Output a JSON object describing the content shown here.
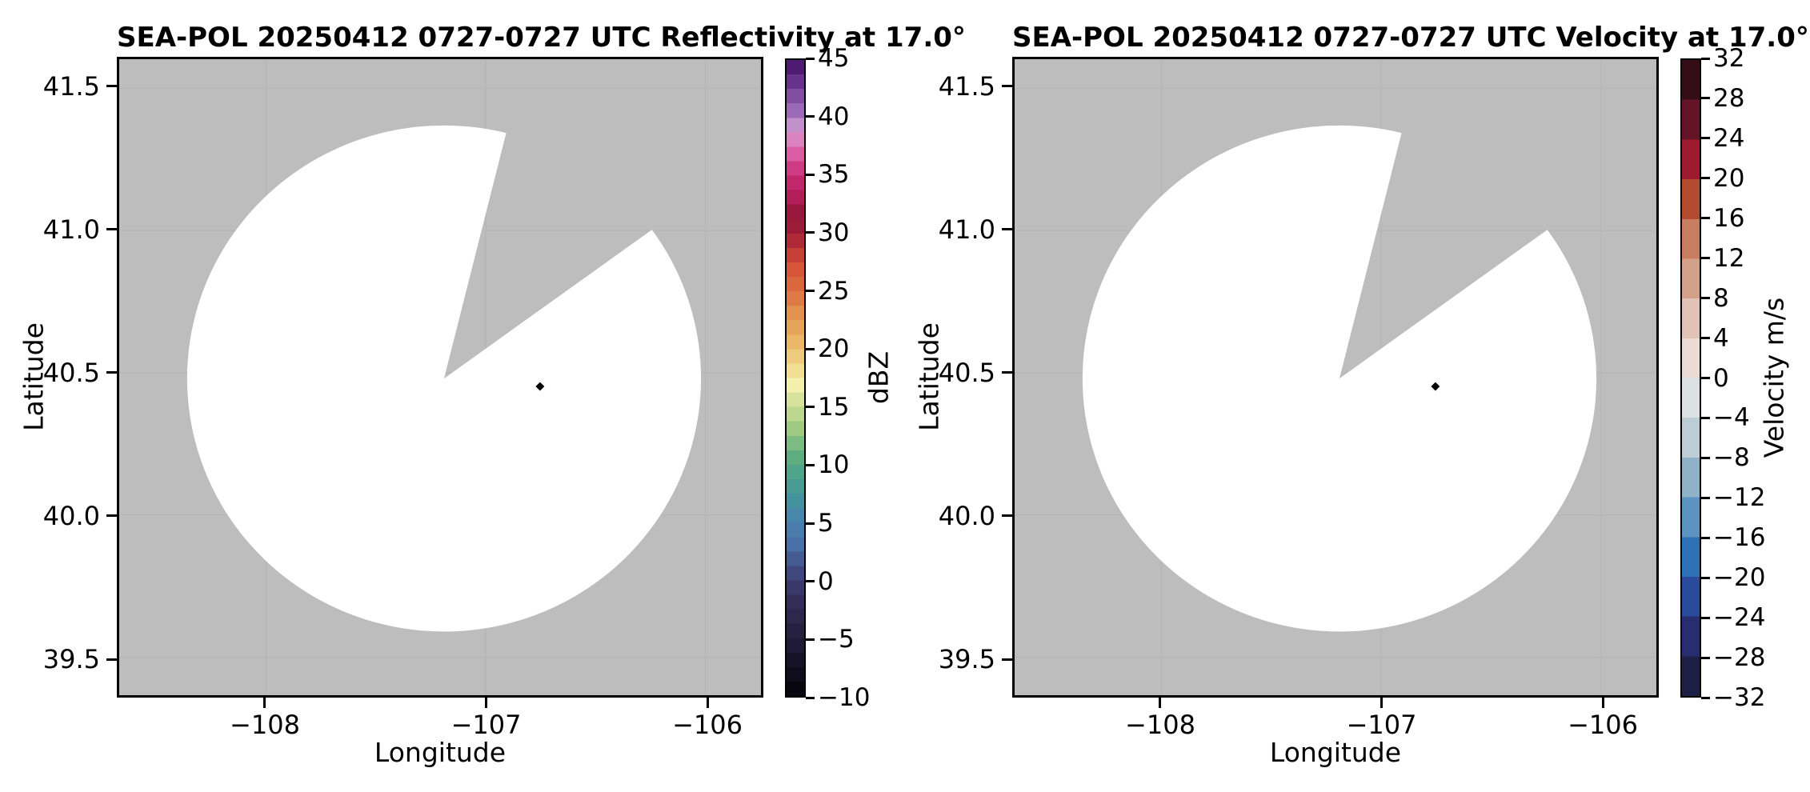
{
  "figure": {
    "background_color": "#ffffff",
    "panel_nodata_color": "#bdbdbd",
    "grid_color": "#b0b0b0",
    "scan_coverage_fill": "#ffffff",
    "marker_color": "#000000",
    "axes_edge_color": "#000000",
    "text_color": "#000000"
  },
  "chart_data": [
    {
      "type": "radar_ppi_map",
      "field": "reflectivity",
      "title": "SEA-POL 20250412 0727-0727 UTC Reflectivity at 17.0°",
      "xlabel": "Longitude",
      "ylabel": "Latitude",
      "xlim": [
        -108.669,
        -105.747
      ],
      "ylim": [
        39.366,
        41.603
      ],
      "xticks": [
        -108,
        -107,
        -106
      ],
      "xtick_labels": [
        "−108",
        "−107",
        "−106"
      ],
      "yticks": [
        41.5,
        41.0,
        40.5,
        40.0,
        39.5
      ],
      "ytick_labels": [
        "41.5",
        "41.0",
        "40.5",
        "40.0",
        "39.5"
      ],
      "grid": true,
      "data_note": "Sweep shows no echoes above mask threshold: scan coverage area is blank (white); surrounding no-data region is gray; one black diamond marker plotted.",
      "scan_coverage": {
        "center_lon": -107.19,
        "center_lat": 40.48,
        "radius_lon_deg": 1.17,
        "radius_lat_deg": 0.89,
        "missing_sector_start_az_deg": 14,
        "missing_sector_end_az_deg": 54
      },
      "marker": {
        "lon": -106.753,
        "lat": 40.452,
        "shape": "diamond"
      },
      "colorbar": {
        "label": "dBZ",
        "min": -10,
        "max": 45,
        "ticks": [
          45,
          40,
          35,
          30,
          25,
          20,
          15,
          10,
          5,
          0,
          -5,
          -10
        ],
        "tick_labels": [
          "45",
          "40",
          "35",
          "30",
          "25",
          "20",
          "15",
          "10",
          "5",
          "0",
          "−5",
          "−10"
        ],
        "style": "quantized_gradient",
        "quant_step": 1.25,
        "stops": [
          [
            -10,
            "#050409"
          ],
          [
            -7,
            "#151126"
          ],
          [
            -5,
            "#241e3c"
          ],
          [
            -2,
            "#322c55"
          ],
          [
            0,
            "#3d3c72"
          ],
          [
            3,
            "#4a6fa7"
          ],
          [
            5,
            "#4a82b0"
          ],
          [
            7,
            "#43939c"
          ],
          [
            9,
            "#4aa18b"
          ],
          [
            11,
            "#63b07f"
          ],
          [
            13,
            "#9cc983"
          ],
          [
            15,
            "#c9dd96"
          ],
          [
            17,
            "#f5f1ac"
          ],
          [
            19,
            "#efd182"
          ],
          [
            21,
            "#e9b260"
          ],
          [
            23,
            "#e39350"
          ],
          [
            25,
            "#dd6f42"
          ],
          [
            27,
            "#d75438"
          ],
          [
            29,
            "#b93137"
          ],
          [
            30,
            "#9e1d36"
          ],
          [
            32,
            "#99163f"
          ],
          [
            33,
            "#b01e56"
          ],
          [
            35,
            "#c92d74"
          ],
          [
            36.5,
            "#d9519a"
          ],
          [
            38,
            "#dc7fbc"
          ],
          [
            39,
            "#d29fd3"
          ],
          [
            40,
            "#a879c0"
          ],
          [
            42,
            "#7e4a9f"
          ],
          [
            44,
            "#54207b"
          ],
          [
            45,
            "#42125f"
          ]
        ]
      }
    },
    {
      "type": "radar_ppi_map",
      "field": "velocity",
      "title": "SEA-POL 20250412 0727-0727 UTC Velocity at 17.0°",
      "xlabel": "Longitude",
      "ylabel": "Latitude",
      "xlim": [
        -108.669,
        -105.747
      ],
      "ylim": [
        39.366,
        41.603
      ],
      "xticks": [
        -108,
        -107,
        -106
      ],
      "xtick_labels": [
        "−108",
        "−107",
        "−106"
      ],
      "yticks": [
        41.5,
        41.0,
        40.5,
        40.0,
        39.5
      ],
      "ytick_labels": [
        "41.5",
        "41.0",
        "40.5",
        "40.0",
        "39.5"
      ],
      "grid": true,
      "data_note": "Sweep shows no velocity echoes: scan coverage area is blank (white); surrounding no-data region is gray; one black diamond marker plotted.",
      "scan_coverage": {
        "center_lon": -107.19,
        "center_lat": 40.48,
        "radius_lon_deg": 1.17,
        "radius_lat_deg": 0.89,
        "missing_sector_start_az_deg": 14,
        "missing_sector_end_az_deg": 54
      },
      "marker": {
        "lon": -106.753,
        "lat": 40.452,
        "shape": "diamond"
      },
      "colorbar": {
        "label": "Velocity m/s",
        "min": -32,
        "max": 32,
        "ticks": [
          32,
          28,
          24,
          20,
          16,
          12,
          8,
          4,
          0,
          -4,
          -8,
          -12,
          -16,
          -20,
          -24,
          -28,
          -32
        ],
        "tick_labels": [
          "32",
          "28",
          "24",
          "20",
          "16",
          "12",
          "8",
          "4",
          "0",
          "−4",
          "−8",
          "−12",
          "−16",
          "−20",
          "−24",
          "−28",
          "−32"
        ],
        "style": "discrete_blocks",
        "block_colors_bottom_to_top": [
          "#1d1f46",
          "#272d6e",
          "#2a4a9c",
          "#2d72b4",
          "#5d93c0",
          "#8fb2c9",
          "#bccdd6",
          "#dce2e4",
          "#eadcd4",
          "#e0c3b6",
          "#d3a08a",
          "#c97d60",
          "#b44a30",
          "#9c1b2e",
          "#641426",
          "#350d16"
        ]
      }
    }
  ]
}
